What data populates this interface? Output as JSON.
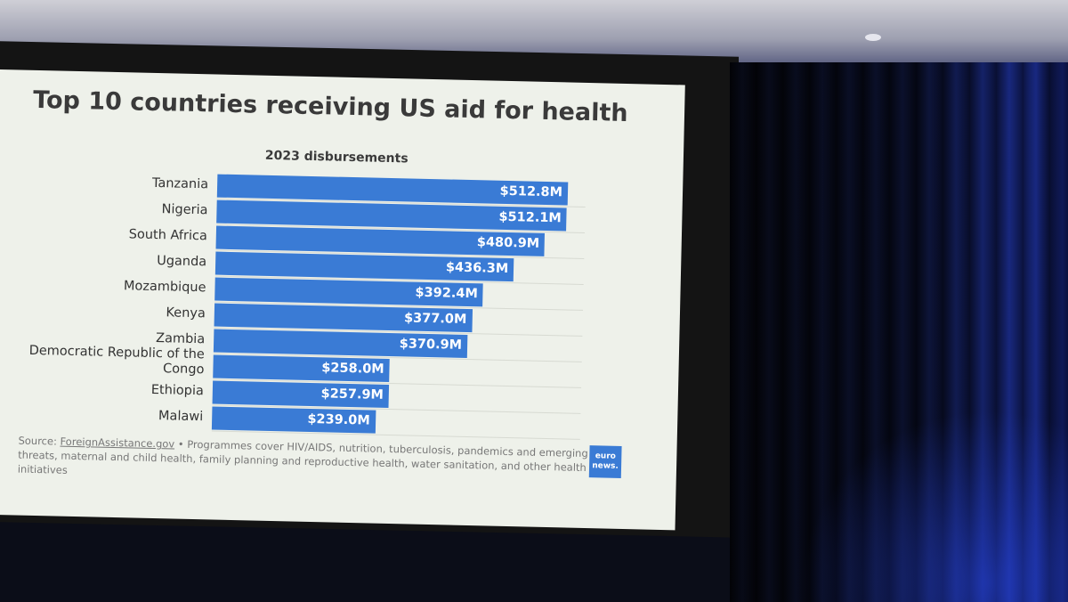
{
  "chart_data": {
    "type": "bar",
    "orientation": "horizontal",
    "title": "Top 10 countries receiving US aid for health",
    "subtitle": "2023 disbursements",
    "categories": [
      "Tanzania",
      "Nigeria",
      "South Africa",
      "Uganda",
      "Mozambique",
      "Kenya",
      "Zambia",
      "Democratic Republic of the Congo",
      "Ethiopia",
      "Malawi"
    ],
    "values": [
      512.8,
      512.1,
      480.9,
      436.3,
      392.4,
      377.0,
      370.9,
      258.0,
      257.9,
      239.0
    ],
    "value_labels": [
      "$512.8M",
      "$512.1M",
      "$480.9M",
      "$436.3M",
      "$392.4M",
      "$377.0M",
      "$370.9M",
      "$258.0M",
      "$257.9M",
      "$239.0M"
    ],
    "bar_color": "#3a7bd5",
    "grid": true
  },
  "source": {
    "prefix": "Source: ",
    "link_text": "ForeignAssistance.gov",
    "note": " • Programmes cover HIV/AIDS, nutrition, tuberculosis, pandemics and emerging threats, maternal and child health, family planning and reproductive health, water sanitation, and other health initiatives"
  },
  "logo": {
    "line1": "euro",
    "line2": "news."
  }
}
